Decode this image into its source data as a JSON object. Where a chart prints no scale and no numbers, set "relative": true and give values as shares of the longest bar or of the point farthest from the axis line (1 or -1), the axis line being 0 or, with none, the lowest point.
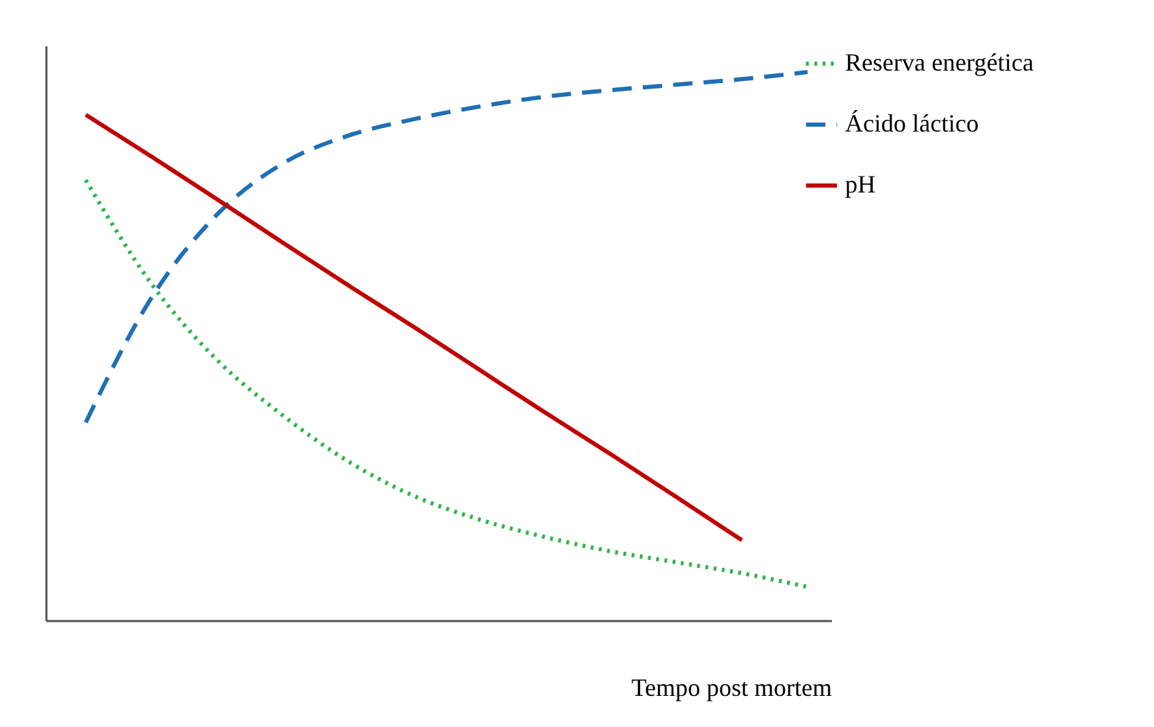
{
  "chart_data": {
    "type": "line",
    "relative": true,
    "xlabel": "Tempo post mortem",
    "legend": "right",
    "grid": false,
    "categories": [
      null,
      null,
      null,
      null,
      null,
      null,
      null,
      null,
      null,
      null,
      null,
      null
    ],
    "series": [
      {
        "name": "Reserva energética",
        "color": "#2db34a",
        "line_style": "dotted",
        "values": [
          0.803,
          0.614,
          0.475,
          0.374,
          0.29,
          0.227,
          0.184,
          0.152,
          0.126,
          0.106,
          0.086,
          0.061
        ]
      },
      {
        "name": "Ácido láctico",
        "color": "#1f6fb5",
        "line_style": "dashed",
        "values": [
          0.361,
          0.588,
          0.74,
          0.833,
          0.884,
          0.914,
          0.937,
          0.955,
          0.967,
          0.977,
          0.987,
          1
        ]
      },
      {
        "name": "pH",
        "color": "#c00000",
        "line_style": "solid",
        "values": [
          0.922,
          0.846,
          0.768,
          0.689,
          0.611,
          0.535,
          0.457,
          0.379,
          0.303,
          0.225,
          0.146,
          null
        ]
      }
    ]
  }
}
